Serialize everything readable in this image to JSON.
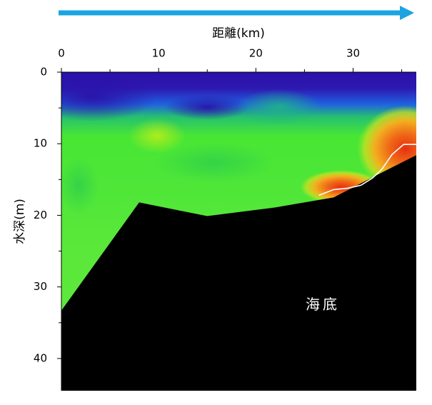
{
  "chart_data": {
    "type": "heatmap",
    "xlabel": "距離(km)",
    "ylabel": "水深(m)",
    "x_axis_position": "top",
    "y_axis_inverted": true,
    "xlim": [
      0,
      36.5
    ],
    "ylim": [
      0,
      44.5
    ],
    "x_ticks": [
      0,
      10,
      20,
      30
    ],
    "x_tick_labels": [
      "0",
      "10",
      "20",
      "30"
    ],
    "y_ticks": [
      0,
      10,
      20,
      30,
      40
    ],
    "y_tick_labels": [
      "0",
      "10",
      "20",
      "30",
      "40"
    ],
    "direction_arrow": "left-to-right",
    "direction_arrow_color": "#1ba4e0",
    "annotation": "海底",
    "seabed_fill": "#000000",
    "contour_color": "#ffffff",
    "seabed_profile": {
      "x": [
        0,
        8,
        15,
        22,
        28,
        33,
        36.5
      ],
      "y": [
        33.3,
        18.2,
        20.1,
        18.9,
        17.5,
        14.0,
        11.6
      ]
    },
    "contour_line": {
      "x": [
        26.5,
        28.0,
        29.5,
        30.8,
        32.0,
        33.0,
        34.0,
        35.2,
        36.5
      ],
      "y": [
        17.2,
        16.4,
        16.2,
        15.8,
        14.8,
        13.5,
        11.5,
        10.1,
        10.1
      ]
    },
    "colorscale": [
      "#2a11a8",
      "#1f5ef0",
      "#23c470",
      "#4ae82e",
      "#8ef018",
      "#f0a020",
      "#e83010"
    ]
  }
}
